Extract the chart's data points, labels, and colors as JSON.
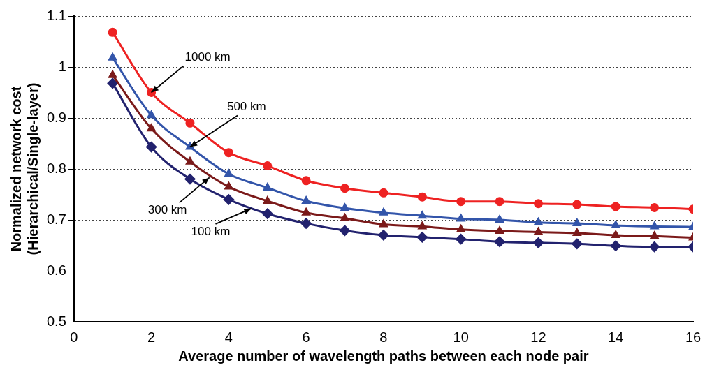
{
  "chart_data": {
    "type": "line",
    "xlabel": "Average number of wavelength paths between each node pair",
    "ylabel": "Normalized network cost\n(Hierarchical/Single-layer)",
    "x": [
      1,
      2,
      3,
      4,
      5,
      6,
      7,
      8,
      9,
      10,
      11,
      12,
      13,
      14,
      15,
      16
    ],
    "series": [
      {
        "color": "#ee2222",
        "marker": "circle",
        "values": [
          1.068,
          0.95,
          0.89,
          0.832,
          0.806,
          0.777,
          0.762,
          0.753,
          0.745,
          0.736,
          0.736,
          0.732,
          0.73,
          0.726,
          0.724,
          0.721
        ]
      },
      {
        "color": "#3355aa",
        "marker": "triangle",
        "values": [
          1.018,
          0.905,
          0.843,
          0.79,
          0.763,
          0.737,
          0.723,
          0.714,
          0.708,
          0.702,
          0.7,
          0.695,
          0.693,
          0.689,
          0.687,
          0.686
        ]
      },
      {
        "color": "#7b1a1a",
        "marker": "triangle",
        "values": [
          0.984,
          0.879,
          0.814,
          0.765,
          0.737,
          0.714,
          0.703,
          0.691,
          0.687,
          0.681,
          0.678,
          0.676,
          0.674,
          0.67,
          0.668,
          0.665
        ]
      },
      {
        "color": "#22226e",
        "marker": "diamond",
        "values": [
          0.968,
          0.843,
          0.78,
          0.74,
          0.712,
          0.693,
          0.679,
          0.67,
          0.666,
          0.662,
          0.657,
          0.655,
          0.653,
          0.649,
          0.647,
          0.647
        ]
      }
    ],
    "annotations": [
      {
        "text": "1000 km",
        "x": 2,
        "y": 0.95
      },
      {
        "text": "500 km",
        "x": 3,
        "y": 0.843
      },
      {
        "text": "300 km",
        "x": 3.5,
        "y": 0.783
      },
      {
        "text": "100 km",
        "x": 4.58,
        "y": 0.722
      }
    ],
    "xlim": [
      0,
      16
    ],
    "xticks": [
      0,
      2,
      4,
      6,
      8,
      10,
      12,
      14,
      16
    ],
    "ylim": [
      0.5,
      1.1
    ],
    "yticks": [
      0.5,
      0.6,
      0.7,
      0.8,
      0.9,
      1,
      1.1
    ],
    "grid": "y",
    "legend": false,
    "line_style": "solid"
  }
}
